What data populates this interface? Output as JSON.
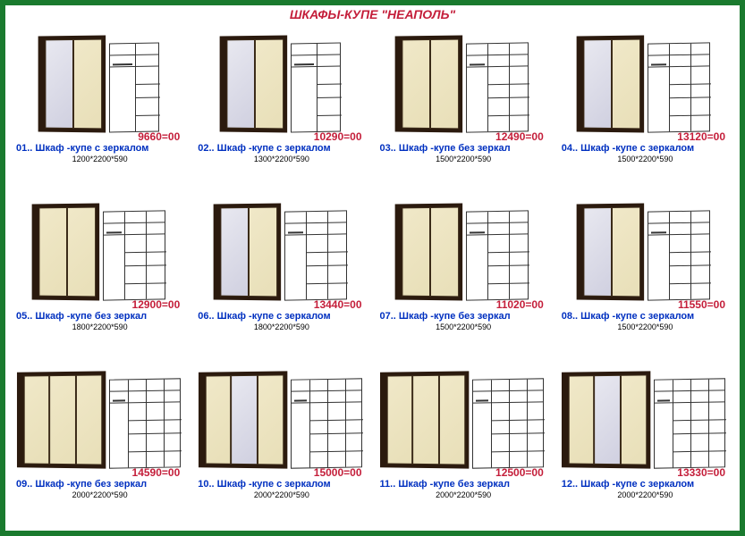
{
  "title": "ШКАФЫ-КУПЕ \"НЕАПОЛЬ\"",
  "colors": {
    "border": "#1a7a2e",
    "title": "#c41e3a",
    "price": "#c41e3a",
    "label": "#0030c0",
    "frame": "#2b1a0e",
    "door": "#f0e8c8",
    "mirror": "#e8e8f0"
  },
  "items": [
    {
      "num": "01",
      "name": "Шкаф -купе с зеркалом",
      "price": "9660=00",
      "dims": "1200*2200*590",
      "doors": 2,
      "mirrors": 1,
      "wire_cols": 2
    },
    {
      "num": "02",
      "name": "Шкаф -купе с зеркалом",
      "price": "10290=00",
      "dims": "1300*2200*590",
      "doors": 2,
      "mirrors": 1,
      "wire_cols": 2
    },
    {
      "num": "03",
      "name": "Шкаф -купе без зеркал",
      "price": "12490=00",
      "dims": "1500*2200*590",
      "doors": 2,
      "mirrors": 0,
      "wire_cols": 3
    },
    {
      "num": "04",
      "name": "Шкаф -купе с зеркалом",
      "price": "13120=00",
      "dims": "1500*2200*590",
      "doors": 2,
      "mirrors": 1,
      "wire_cols": 3
    },
    {
      "num": "05",
      "name": "Шкаф -купе без зеркал",
      "price": "12900=00",
      "dims": "1800*2200*590",
      "doors": 2,
      "mirrors": 0,
      "wire_cols": 3
    },
    {
      "num": "06",
      "name": "Шкаф -купе с зеркалом",
      "price": "13440=00",
      "dims": "1800*2200*590",
      "doors": 2,
      "mirrors": 1,
      "wire_cols": 3
    },
    {
      "num": "07",
      "name": "Шкаф -купе без зеркал",
      "price": "11020=00",
      "dims": "1500*2200*590",
      "doors": 2,
      "mirrors": 0,
      "wire_cols": 3
    },
    {
      "num": "08",
      "name": "Шкаф -купе с зеркалом",
      "price": "11550=00",
      "dims": "1500*2200*590",
      "doors": 2,
      "mirrors": 1,
      "wire_cols": 3
    },
    {
      "num": "09",
      "name": "Шкаф -купе без зеркал",
      "price": "14590=00",
      "dims": "2000*2200*590",
      "doors": 3,
      "mirrors": 0,
      "wire_cols": 4
    },
    {
      "num": "10",
      "name": "Шкаф -купе с зеркалом",
      "price": "15000=00",
      "dims": "2000*2200*590",
      "doors": 3,
      "mirrors": 1,
      "wire_cols": 4
    },
    {
      "num": "11",
      "name": "Шкаф -купе без зеркал",
      "price": "12500=00",
      "dims": "2000*2200*590",
      "doors": 3,
      "mirrors": 0,
      "wire_cols": 4
    },
    {
      "num": "12",
      "name": "Шкаф -купе с зеркалом",
      "price": "13330=00",
      "dims": "2000*2200*590",
      "doors": 3,
      "mirrors": 1,
      "wire_cols": 4
    }
  ],
  "wardrobe_render": {
    "two_door_w": 72,
    "three_door_w": 96,
    "height": 108,
    "door_w": 34,
    "wire_two_w": 56,
    "wire_three_w": 70,
    "wire_four_w": 80,
    "wire_h": 100
  }
}
